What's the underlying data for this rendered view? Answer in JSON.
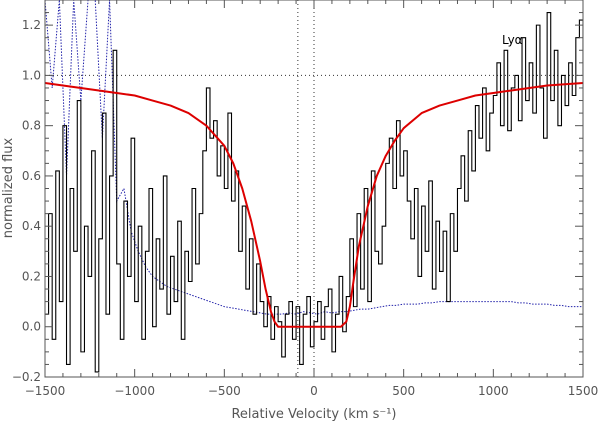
{
  "chart_data": {
    "type": "line",
    "title": "",
    "xlabel": "Relative Velocity (km s⁻¹)",
    "ylabel": "normalized flux",
    "xlim": [
      -1500,
      1500
    ],
    "ylim": [
      -0.2,
      1.3
    ],
    "x_ticks": [
      -1500,
      -1000,
      -500,
      0,
      500,
      1000,
      1500
    ],
    "y_ticks": [
      -0.2,
      0.0,
      0.2,
      0.4,
      0.6,
      0.8,
      1.0,
      1.2
    ],
    "annotation": "Lyα",
    "reference_lines": {
      "horizontal": [
        1.0
      ],
      "vertical": [
        -90,
        0
      ]
    },
    "series": [
      {
        "role": "observed flux",
        "style": "solid-step",
        "color": "#000000",
        "x": [
          -1500,
          -1480,
          -1460,
          -1440,
          -1420,
          -1400,
          -1380,
          -1360,
          -1340,
          -1320,
          -1300,
          -1280,
          -1260,
          -1240,
          -1220,
          -1200,
          -1180,
          -1160,
          -1140,
          -1120,
          -1100,
          -1080,
          -1060,
          -1040,
          -1020,
          -1000,
          -980,
          -960,
          -940,
          -920,
          -900,
          -880,
          -860,
          -840,
          -820,
          -800,
          -780,
          -760,
          -740,
          -720,
          -700,
          -680,
          -660,
          -640,
          -620,
          -600,
          -580,
          -560,
          -540,
          -520,
          -500,
          -480,
          -460,
          -440,
          -420,
          -400,
          -380,
          -360,
          -340,
          -320,
          -300,
          -280,
          -260,
          -240,
          -220,
          -200,
          -180,
          -160,
          -140,
          -120,
          -100,
          -80,
          -60,
          -40,
          -20,
          0,
          20,
          40,
          60,
          80,
          100,
          120,
          140,
          160,
          180,
          200,
          220,
          240,
          260,
          280,
          300,
          320,
          340,
          360,
          380,
          400,
          420,
          440,
          460,
          480,
          500,
          520,
          540,
          560,
          580,
          600,
          620,
          640,
          660,
          680,
          700,
          720,
          740,
          760,
          780,
          800,
          820,
          840,
          860,
          880,
          900,
          920,
          940,
          960,
          980,
          1000,
          1020,
          1040,
          1060,
          1080,
          1100,
          1120,
          1140,
          1160,
          1180,
          1200,
          1220,
          1240,
          1260,
          1280,
          1300,
          1320,
          1340,
          1360,
          1380,
          1400,
          1420,
          1440,
          1460,
          1480,
          1500
        ],
        "y": [
          0.05,
          0.45,
          -0.05,
          0.62,
          0.1,
          0.8,
          -0.15,
          0.55,
          0.3,
          0.9,
          -0.1,
          0.4,
          0.2,
          0.7,
          -0.18,
          0.35,
          0.85,
          0.05,
          0.6,
          1.1,
          0.25,
          -0.05,
          0.5,
          0.2,
          0.75,
          0.1,
          0.4,
          -0.05,
          0.3,
          0.55,
          0.0,
          0.35,
          0.15,
          0.6,
          0.05,
          0.28,
          0.1,
          0.42,
          -0.05,
          0.3,
          0.18,
          0.55,
          0.25,
          0.45,
          0.7,
          0.95,
          0.75,
          0.82,
          0.6,
          0.72,
          0.55,
          0.85,
          0.5,
          0.62,
          0.3,
          0.48,
          0.15,
          0.35,
          0.05,
          0.25,
          0.1,
          0.0,
          0.12,
          -0.05,
          0.08,
          0.02,
          -0.12,
          0.05,
          0.1,
          -0.05,
          0.08,
          -0.15,
          0.05,
          0.12,
          -0.08,
          0.02,
          0.1,
          -0.05,
          0.08,
          0.15,
          -0.1,
          0.05,
          0.2,
          -0.02,
          0.12,
          0.35,
          0.08,
          0.45,
          0.15,
          0.55,
          0.1,
          0.62,
          0.3,
          0.25,
          0.4,
          0.65,
          0.75,
          0.55,
          0.82,
          0.6,
          0.7,
          0.5,
          0.35,
          0.55,
          0.2,
          0.48,
          0.3,
          0.58,
          0.15,
          0.42,
          0.22,
          0.38,
          0.1,
          0.45,
          0.3,
          0.55,
          0.68,
          0.5,
          0.78,
          0.62,
          0.88,
          0.75,
          0.95,
          0.7,
          0.85,
          0.92,
          1.05,
          0.8,
          1.1,
          0.78,
          0.95,
          1.0,
          0.82,
          1.15,
          0.9,
          1.05,
          0.85,
          1.2,
          0.95,
          0.75,
          1.25,
          0.9,
          1.1,
          0.8,
          1.0,
          0.88,
          1.05,
          0.92,
          1.15,
          1.22,
          1.0
        ]
      },
      {
        "role": "error spectrum",
        "style": "dotted",
        "color": "#2222aa",
        "x": [
          -1500,
          -1460,
          -1420,
          -1380,
          -1340,
          -1300,
          -1260,
          -1220,
          -1180,
          -1140,
          -1100,
          -1060,
          -1020,
          -980,
          -940,
          -900,
          -860,
          -820,
          -780,
          -740,
          -700,
          -660,
          -620,
          -580,
          -540,
          -500,
          -460,
          -420,
          -380,
          -340,
          -300,
          -260,
          -220,
          -180,
          -140,
          -100,
          -60,
          -20,
          20,
          60,
          100,
          140,
          180,
          220,
          260,
          300,
          340,
          380,
          420,
          460,
          500,
          540,
          580,
          620,
          660,
          700,
          740,
          780,
          820,
          860,
          900,
          940,
          980,
          1020,
          1060,
          1100,
          1140,
          1180,
          1220,
          1260,
          1300,
          1340,
          1380,
          1420,
          1460,
          1500
        ],
        "y": [
          1.3,
          0.95,
          1.3,
          0.6,
          1.3,
          0.9,
          1.3,
          1.3,
          0.75,
          1.3,
          0.5,
          0.55,
          0.38,
          0.3,
          0.24,
          0.2,
          0.18,
          0.16,
          0.15,
          0.14,
          0.13,
          0.12,
          0.11,
          0.1,
          0.09,
          0.08,
          0.075,
          0.07,
          0.065,
          0.06,
          0.055,
          0.05,
          0.05,
          0.05,
          0.055,
          0.05,
          0.06,
          0.055,
          0.05,
          0.06,
          0.055,
          0.06,
          0.06,
          0.065,
          0.07,
          0.07,
          0.075,
          0.08,
          0.085,
          0.085,
          0.09,
          0.09,
          0.09,
          0.095,
          0.095,
          0.1,
          0.1,
          0.1,
          0.1,
          0.1,
          0.1,
          0.1,
          0.1,
          0.1,
          0.1,
          0.1,
          0.095,
          0.095,
          0.09,
          0.09,
          0.09,
          0.085,
          0.085,
          0.08,
          0.08,
          0.08
        ]
      },
      {
        "role": "model fit",
        "style": "smooth",
        "color": "#dd0000",
        "x": [
          -1500,
          -1400,
          -1300,
          -1200,
          -1100,
          -1000,
          -900,
          -800,
          -700,
          -600,
          -500,
          -450,
          -400,
          -350,
          -300,
          -270,
          -240,
          -220,
          -200,
          -100,
          0,
          100,
          150,
          180,
          200,
          220,
          250,
          300,
          350,
          400,
          450,
          500,
          600,
          700,
          800,
          900,
          1000,
          1100,
          1200,
          1300,
          1400,
          1500
        ],
        "y": [
          0.97,
          0.96,
          0.95,
          0.94,
          0.93,
          0.92,
          0.9,
          0.88,
          0.85,
          0.8,
          0.72,
          0.65,
          0.55,
          0.42,
          0.26,
          0.15,
          0.06,
          0.02,
          0.0,
          0.0,
          0.0,
          0.0,
          0.0,
          0.02,
          0.08,
          0.18,
          0.32,
          0.48,
          0.6,
          0.68,
          0.74,
          0.79,
          0.85,
          0.88,
          0.9,
          0.92,
          0.93,
          0.94,
          0.95,
          0.96,
          0.965,
          0.97
        ]
      }
    ]
  }
}
